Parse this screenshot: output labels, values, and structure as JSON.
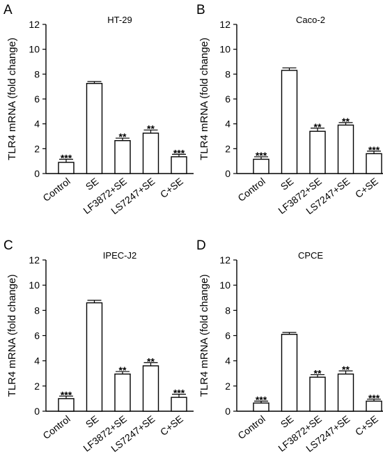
{
  "chart_data": [
    {
      "panel_label": "A",
      "type": "bar",
      "title": "HT-29",
      "ylabel": "TLR4 mRNA (fold change)",
      "ylim": [
        0,
        12
      ],
      "yticks": [
        "0",
        "2",
        "4",
        "6",
        "8",
        "10",
        "12"
      ],
      "categories": [
        "Control",
        "SE",
        "LF3872+SE",
        "LS7247+SE",
        "C+SE"
      ],
      "values": [
        0.9,
        7.25,
        2.65,
        3.25,
        1.35
      ],
      "errors": [
        0.25,
        0.15,
        0.2,
        0.25,
        0.2
      ],
      "significance": [
        "***",
        "",
        "**",
        "**",
        "***"
      ]
    },
    {
      "panel_label": "B",
      "type": "bar",
      "title": "Caco-2",
      "ylabel": "TLR4 mRNA (fold change)",
      "ylim": [
        0,
        12
      ],
      "yticks": [
        "0",
        "2",
        "4",
        "6",
        "8",
        "10",
        "12"
      ],
      "categories": [
        "Control",
        "SE",
        "LF3872+SE",
        "LS7247+SE",
        "C+SE"
      ],
      "values": [
        1.15,
        8.3,
        3.4,
        3.9,
        1.6
      ],
      "errors": [
        0.2,
        0.2,
        0.25,
        0.2,
        0.2
      ],
      "significance": [
        "***",
        "",
        "**",
        "**",
        "***"
      ]
    },
    {
      "panel_label": "C",
      "type": "bar",
      "title": "IPEC-J2",
      "ylabel": "TLR4 mRNA (fold change)",
      "ylim": [
        0,
        12
      ],
      "yticks": [
        "0",
        "2",
        "4",
        "6",
        "8",
        "10",
        "12"
      ],
      "categories": [
        "Control",
        "SE",
        "LF3872+SE",
        "LS7247+SE",
        "C+SE"
      ],
      "values": [
        1.0,
        8.6,
        2.95,
        3.6,
        1.1
      ],
      "errors": [
        0.2,
        0.2,
        0.2,
        0.25,
        0.25
      ],
      "significance": [
        "***",
        "",
        "**",
        "**",
        "***"
      ]
    },
    {
      "panel_label": "D",
      "type": "bar",
      "title": "CPCE",
      "ylabel": "TLR4 mRNA (fold change)",
      "ylim": [
        0,
        12
      ],
      "yticks": [
        "0",
        "2",
        "4",
        "6",
        "8",
        "10",
        "12"
      ],
      "categories": [
        "Control",
        "SE",
        "LF3872+SE",
        "LS7247+SE",
        "C+SE"
      ],
      "values": [
        0.65,
        6.1,
        2.7,
        2.95,
        0.8
      ],
      "errors": [
        0.15,
        0.15,
        0.2,
        0.25,
        0.15
      ],
      "significance": [
        "***",
        "",
        "**",
        "**",
        "***"
      ]
    }
  ]
}
